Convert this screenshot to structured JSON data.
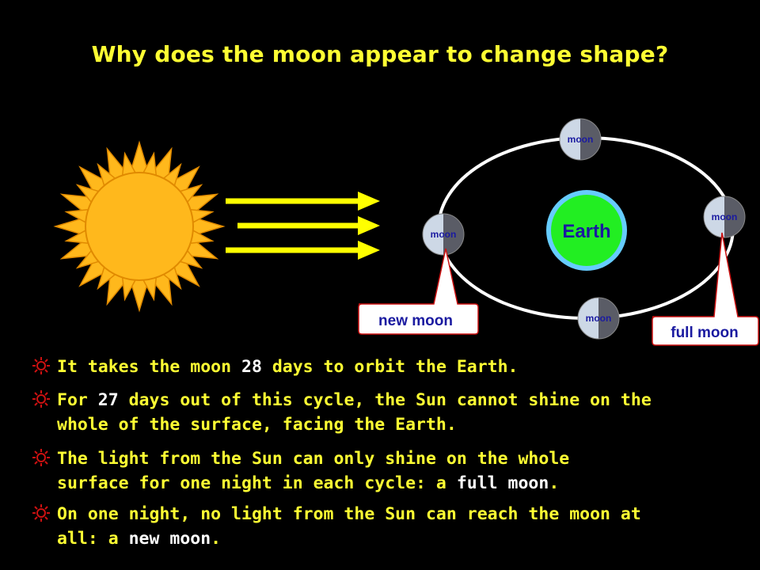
{
  "title": "Why does the moon appear to change shape?",
  "diagram": {
    "earth_label": "Earth",
    "moon_labels": [
      "moon",
      "moon",
      "moon",
      "moon"
    ],
    "callout_new": "new moon",
    "callout_full": "full moon"
  },
  "colors": {
    "background": "#000000",
    "title": "#ffff33",
    "text": "#ffff33",
    "highlight": "#ffffff",
    "sun": "#ffb81c",
    "earth": "#22ee22",
    "earth_ring": "#66ccff",
    "earth_label": "#1a1aa0",
    "callout_text": "#1a1aa0",
    "callout_border": "#cc1111",
    "bullet_icon": "#cc1111"
  },
  "bullets": [
    {
      "segments": [
        "It takes the moon ",
        "28",
        " days to orbit the Earth."
      ],
      "icon": "sun-bullet-icon"
    },
    {
      "segments": [
        "For ",
        "27",
        " days out of this cycle, the Sun cannot shine on the\nwhole of the surface, facing the Earth."
      ],
      "icon": "sun-bullet-icon"
    },
    {
      "segments": [
        "The light from the Sun can only shine on the whole\nsurface for one night in each cycle: a ",
        "full moon",
        "."
      ],
      "icon": "sun-bullet-icon"
    },
    {
      "segments": [
        "On one night, no light from the Sun can reach the moon at\nall: a ",
        "new moon",
        "."
      ],
      "icon": "sun-bullet-icon"
    }
  ]
}
